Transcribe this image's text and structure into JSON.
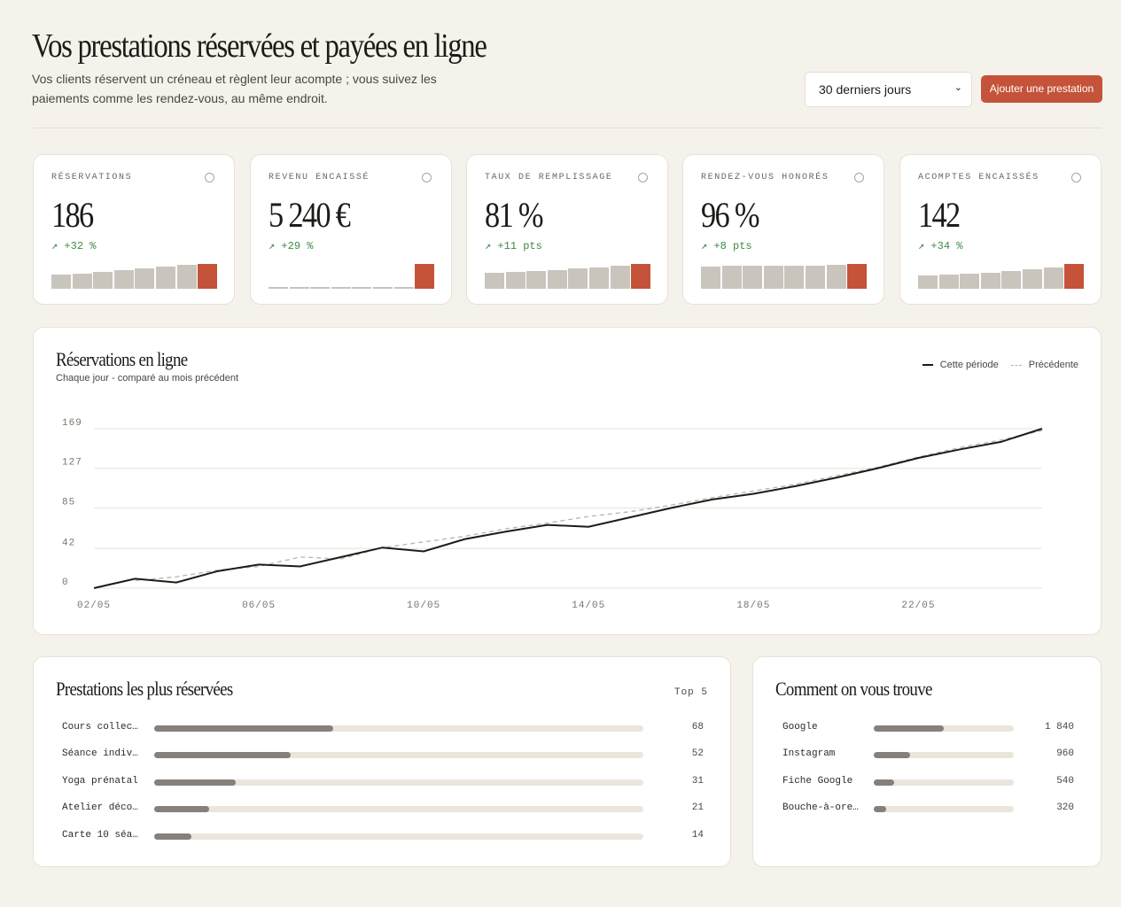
{
  "header": {
    "title": "Vos prestations réservées et payées en ligne",
    "subtitle": "Vos clients réservent un créneau et règlent leur acompte ; vous suivez les paiements comme les rendez-vous, au même endroit.",
    "period_select": "30 derniers jours",
    "add_button": "Ajouter une prestation"
  },
  "kpis": [
    {
      "label": "Réservations",
      "value": "186",
      "delta": "↗ +32 %",
      "bars": [
        16,
        17,
        19,
        21,
        23,
        25,
        27,
        28
      ]
    },
    {
      "label": "Revenu encaissé",
      "value": "5 240 €",
      "delta": "↗ +29 %",
      "bars": [
        2,
        2,
        2,
        2,
        2,
        2,
        2,
        28
      ]
    },
    {
      "label": "Taux de remplissage",
      "value": "81 %",
      "delta": "↗ +11 pts",
      "bars": [
        18,
        19,
        20,
        21,
        23,
        24,
        26,
        28
      ]
    },
    {
      "label": "Rendez-vous honorés",
      "value": "96 %",
      "delta": "↗ +8 pts",
      "bars": [
        24,
        25,
        25,
        25,
        25,
        25,
        26,
        27
      ]
    },
    {
      "label": "Acomptes encaissés",
      "value": "142",
      "delta": "↗ +34 %",
      "bars": [
        15,
        16,
        17,
        18,
        20,
        22,
        24,
        28
      ]
    }
  ],
  "chart_data": {
    "type": "line",
    "title": "Réservations en ligne",
    "subtitle": "Chaque jour - comparé au mois précédent",
    "categories": [
      "02/05",
      null,
      null,
      null,
      "06/05",
      null,
      null,
      null,
      "10/05",
      null,
      null,
      null,
      "14/05",
      null,
      null,
      null,
      "18/05",
      null,
      null,
      null,
      "22/05",
      null,
      null,
      null
    ],
    "series": [
      {
        "name": "Cette période",
        "color": "#1d1b18",
        "dashed": false,
        "values": [
          0,
          10,
          6,
          18,
          25,
          23,
          33,
          43,
          39,
          52,
          60,
          67,
          65,
          75,
          85,
          94,
          100,
          108,
          117,
          127,
          138,
          147,
          155,
          169
        ]
      },
      {
        "name": "Précédente",
        "color": "#b9b4ab",
        "dashed": true,
        "values": [
          null,
          8,
          12,
          19,
          23,
          33,
          31,
          43,
          49,
          55,
          63,
          69,
          76,
          81,
          88,
          96,
          103,
          110,
          119,
          128,
          139,
          149,
          157,
          167
        ]
      }
    ],
    "ylim": [
      0,
      169
    ],
    "yticks": [
      0,
      42,
      85,
      127,
      169
    ],
    "grid": true,
    "legend": "top-right"
  },
  "top_services": {
    "title": "Prestations les plus réservées",
    "badge": "Top 5",
    "xlim": [
      0,
      186
    ],
    "categories": [
      "Cours collec…",
      "Séance indiv…",
      "Yoga prénatal",
      "Atelier déco…",
      "Carte 10 séa…"
    ],
    "values": [
      68,
      52,
      31,
      21,
      14
    ]
  },
  "sources": {
    "title": "Comment on vous trouve",
    "xlim": [
      0,
      3660
    ],
    "categories": [
      "Google",
      "Instagram",
      "Fiche Google",
      "Bouche-à-ore…"
    ],
    "values": [
      1840,
      960,
      540,
      320
    ],
    "value_labels": [
      "1 840",
      "960",
      "540",
      "320"
    ]
  }
}
